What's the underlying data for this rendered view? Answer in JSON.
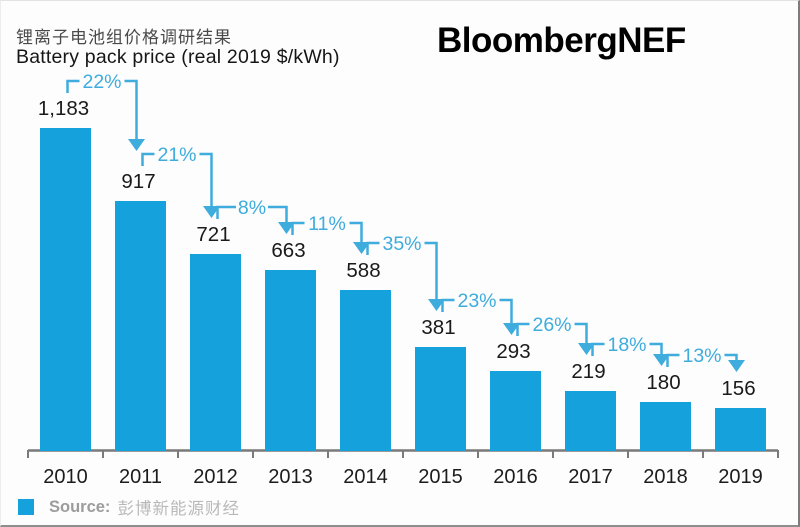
{
  "header": {
    "title_zh": "锂离子电池组价格调研结果",
    "title_en": "Battery pack price (real 2019 $/kWh)",
    "brand": "BloombergNEF"
  },
  "chart_data": {
    "type": "bar",
    "title": "Battery pack price (real 2019 $/kWh)",
    "title_zh": "锂离子电池组价格调研结果",
    "xlabel": "",
    "ylabel": "real 2019 $/kWh",
    "categories": [
      "2010",
      "2011",
      "2012",
      "2013",
      "2014",
      "2015",
      "2016",
      "2017",
      "2018",
      "2019"
    ],
    "values": [
      1183,
      917,
      721,
      663,
      588,
      381,
      293,
      219,
      180,
      156
    ],
    "value_labels": [
      "1,183",
      "917",
      "721",
      "663",
      "588",
      "381",
      "293",
      "219",
      "180",
      "156"
    ],
    "declines": [
      {
        "from": "2010",
        "to": "2011",
        "label": "22%"
      },
      {
        "from": "2011",
        "to": "2012",
        "label": "21%"
      },
      {
        "from": "2012",
        "to": "2013",
        "label": "8%"
      },
      {
        "from": "2013",
        "to": "2014",
        "label": "11%"
      },
      {
        "from": "2014",
        "to": "2015",
        "label": "35%"
      },
      {
        "from": "2015",
        "to": "2016",
        "label": "23%"
      },
      {
        "from": "2016",
        "to": "2017",
        "label": "26%"
      },
      {
        "from": "2017",
        "to": "2018",
        "label": "18%"
      },
      {
        "from": "2018",
        "to": "2019",
        "label": "13%"
      }
    ],
    "ylim": [
      0,
      1250
    ],
    "grid": false,
    "legend_position": "bottom-left",
    "bar_color": "#14a1dc",
    "arrow_color": "#3eacdc",
    "axis_color": "#7a7a7a",
    "label_color": "#1a1a1a"
  },
  "footer": {
    "source_label": "Source:",
    "source_value": "彭博新能源财经"
  }
}
